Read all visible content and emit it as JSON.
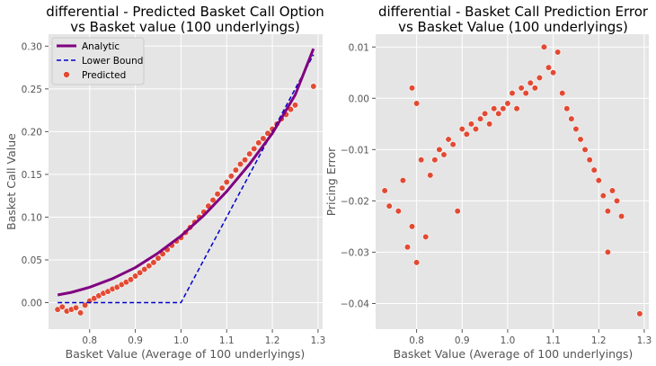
{
  "chart_data": [
    {
      "type": "scatter",
      "title_lines": [
        "differential - Predicted Basket Call Option",
        "vs Basket value (100 underlyings)"
      ],
      "xlabel": "Basket Value (Average of 100 underlyings)",
      "ylabel": "Basket Call Value",
      "xlim": [
        0.71,
        1.31
      ],
      "ylim": [
        -0.031,
        0.314
      ],
      "xticks": [
        0.8,
        0.9,
        1.0,
        1.1,
        1.2,
        1.3
      ],
      "xtick_labels": [
        "0.8",
        "0.9",
        "1.0",
        "1.1",
        "1.2",
        "1.3"
      ],
      "yticks": [
        0.0,
        0.05,
        0.1,
        0.15,
        0.2,
        0.25,
        0.3
      ],
      "ytick_labels": [
        "0.00",
        "0.05",
        "0.10",
        "0.15",
        "0.20",
        "0.25",
        "0.30"
      ],
      "grid": true,
      "legend_position": "top-left",
      "series": [
        {
          "name": "Analytic",
          "kind": "line",
          "color": "#800080",
          "x": [
            0.73,
            0.76,
            0.8,
            0.85,
            0.9,
            0.95,
            1.0,
            1.05,
            1.1,
            1.15,
            1.2,
            1.25,
            1.29
          ],
          "y": [
            0.009,
            0.012,
            0.018,
            0.028,
            0.041,
            0.058,
            0.078,
            0.102,
            0.13,
            0.162,
            0.198,
            0.243,
            0.297
          ]
        },
        {
          "name": "Lower Bound",
          "kind": "dashed-line",
          "color": "#0000cc",
          "x": [
            0.73,
            1.0,
            1.29
          ],
          "y": [
            0.0,
            0.0,
            0.29
          ]
        },
        {
          "name": "Predicted",
          "kind": "scatter",
          "color": "#e24a33",
          "x": [
            0.73,
            0.74,
            0.75,
            0.76,
            0.77,
            0.78,
            0.79,
            0.8,
            0.81,
            0.82,
            0.83,
            0.84,
            0.85,
            0.86,
            0.87,
            0.88,
            0.89,
            0.9,
            0.91,
            0.92,
            0.93,
            0.94,
            0.95,
            0.96,
            0.97,
            0.98,
            0.99,
            1.0,
            1.01,
            1.02,
            1.03,
            1.04,
            1.05,
            1.06,
            1.07,
            1.08,
            1.09,
            1.1,
            1.11,
            1.12,
            1.13,
            1.14,
            1.15,
            1.16,
            1.17,
            1.18,
            1.19,
            1.2,
            1.21,
            1.22,
            1.23,
            1.24,
            1.25,
            1.29
          ],
          "y": [
            -0.008,
            -0.005,
            -0.01,
            -0.008,
            -0.006,
            -0.012,
            -0.003,
            0.002,
            0.005,
            0.008,
            0.011,
            0.013,
            0.016,
            0.018,
            0.021,
            0.024,
            0.027,
            0.031,
            0.035,
            0.039,
            0.043,
            0.047,
            0.052,
            0.057,
            0.062,
            0.067,
            0.072,
            0.076,
            0.082,
            0.088,
            0.094,
            0.1,
            0.106,
            0.113,
            0.12,
            0.127,
            0.134,
            0.141,
            0.148,
            0.155,
            0.162,
            0.167,
            0.174,
            0.18,
            0.187,
            0.192,
            0.198,
            0.203,
            0.209,
            0.215,
            0.22,
            0.226,
            0.231,
            0.253
          ]
        }
      ]
    },
    {
      "type": "scatter",
      "title_lines": [
        "differential - Basket Call Prediction Error",
        "vs Basket Value (100 underlyings)"
      ],
      "xlabel": "Basket Value (Average of 100 underlyings)",
      "ylabel": "Pricing Error",
      "xlim": [
        0.71,
        1.31
      ],
      "ylim": [
        -0.045,
        0.0125
      ],
      "xticks": [
        0.8,
        0.9,
        1.0,
        1.1,
        1.2,
        1.3
      ],
      "xtick_labels": [
        "0.8",
        "0.9",
        "1.0",
        "1.1",
        "1.2",
        "1.3"
      ],
      "yticks": [
        -0.04,
        -0.03,
        -0.02,
        -0.01,
        0.0,
        0.01
      ],
      "ytick_labels": [
        "−0.04",
        "−0.03",
        "−0.02",
        "−0.01",
        "0.00",
        "0.01"
      ],
      "grid": true,
      "series": [
        {
          "kind": "scatter",
          "color": "#e24a33",
          "x": [
            0.73,
            0.74,
            0.76,
            0.77,
            0.78,
            0.79,
            0.79,
            0.8,
            0.8,
            0.81,
            0.82,
            0.83,
            0.84,
            0.85,
            0.86,
            0.87,
            0.88,
            0.89,
            0.9,
            0.91,
            0.92,
            0.93,
            0.94,
            0.95,
            0.96,
            0.97,
            0.98,
            0.99,
            1.0,
            1.01,
            1.02,
            1.03,
            1.04,
            1.05,
            1.06,
            1.07,
            1.08,
            1.09,
            1.1,
            1.11,
            1.12,
            1.13,
            1.14,
            1.15,
            1.16,
            1.17,
            1.18,
            1.19,
            1.2,
            1.21,
            1.22,
            1.22,
            1.23,
            1.24,
            1.25,
            1.29
          ],
          "y": [
            -0.018,
            -0.021,
            -0.022,
            -0.016,
            -0.029,
            -0.025,
            0.002,
            -0.032,
            -0.001,
            -0.012,
            -0.027,
            -0.015,
            -0.012,
            -0.01,
            -0.011,
            -0.008,
            -0.009,
            -0.022,
            -0.006,
            -0.007,
            -0.005,
            -0.006,
            -0.004,
            -0.003,
            -0.005,
            -0.002,
            -0.003,
            -0.002,
            -0.001,
            0.001,
            -0.002,
            0.002,
            0.001,
            0.003,
            0.002,
            0.004,
            0.01,
            0.006,
            0.005,
            0.009,
            0.001,
            -0.002,
            -0.004,
            -0.006,
            -0.008,
            -0.01,
            -0.012,
            -0.014,
            -0.016,
            -0.019,
            -0.022,
            -0.03,
            -0.018,
            -0.02,
            -0.023,
            -0.042
          ]
        }
      ]
    }
  ]
}
